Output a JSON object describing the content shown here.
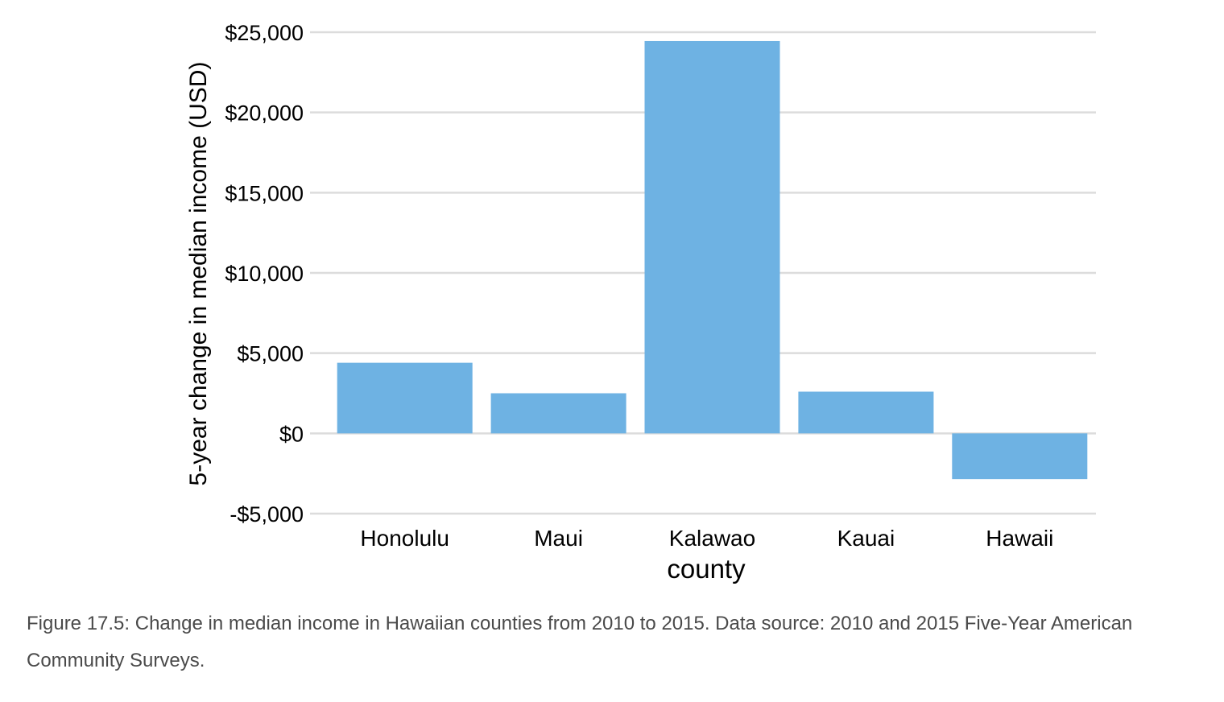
{
  "chart_data": {
    "type": "bar",
    "categories": [
      "Honolulu",
      "Maui",
      "Kalawao",
      "Kauai",
      "Hawaii"
    ],
    "values": [
      4400,
      2500,
      24450,
      2600,
      -2850
    ],
    "xlabel": "county",
    "ylabel": "5-year change in median income (USD)",
    "ylim": [
      -5000,
      25000
    ],
    "yticks": [
      -5000,
      0,
      5000,
      10000,
      15000,
      20000,
      25000
    ],
    "ytick_labels": [
      "-$5,000",
      "$0",
      "$5,000",
      "$10,000",
      "$15,000",
      "$20,000",
      "$25,000"
    ],
    "grid": true,
    "bar_color": "#6eb2e3",
    "grid_color": "#dcdcdc"
  },
  "caption": "Figure 17.5: Change in median income in Hawaiian counties from 2010 to 2015. Data source: 2010 and 2015 Five-Year American Community Surveys."
}
